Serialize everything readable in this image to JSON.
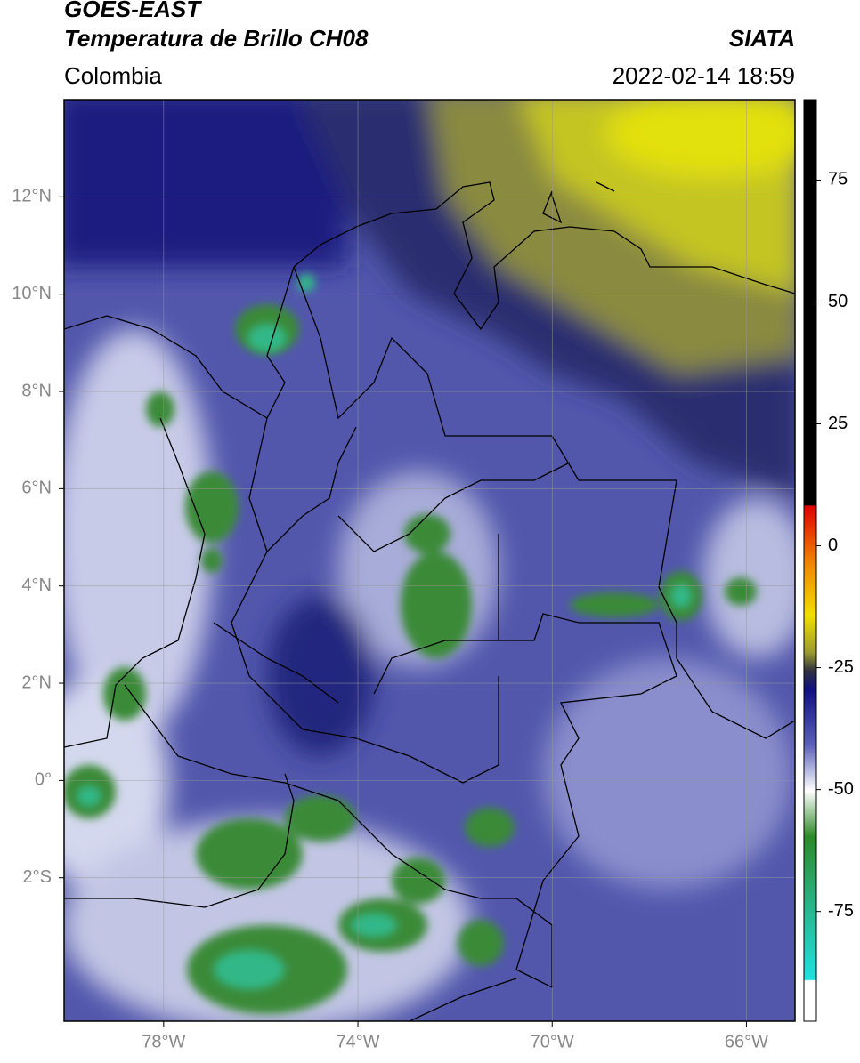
{
  "header": {
    "title": "GOES-EAST",
    "subtitle": "Temperatura de Brillo CH08",
    "agency": "SIATA",
    "region": "Colombia",
    "timestamp": "2022-02-14 18:59"
  },
  "map": {
    "xlim": [
      -80.05,
      -65
    ],
    "ylim": [
      -4.95,
      14
    ],
    "xticks": [
      {
        "value": -78,
        "label": "78°W"
      },
      {
        "value": -74,
        "label": "74°W"
      },
      {
        "value": -70,
        "label": "70°W"
      },
      {
        "value": -66,
        "label": "66°W"
      }
    ],
    "yticks": [
      {
        "value": 12,
        "label": "12°N"
      },
      {
        "value": 10,
        "label": "10°N"
      },
      {
        "value": 8,
        "label": "8°N"
      },
      {
        "value": 6,
        "label": "6°N"
      },
      {
        "value": 4,
        "label": "4°N"
      },
      {
        "value": 2,
        "label": "2°N"
      },
      {
        "value": 0,
        "label": "0°"
      },
      {
        "value": -2,
        "label": "2°S"
      }
    ],
    "grid": true
  },
  "colorbar": {
    "lim": [
      -97.5,
      91.5
    ],
    "ticks": [
      75,
      50,
      25,
      0,
      -25,
      -50,
      -75
    ]
  }
}
